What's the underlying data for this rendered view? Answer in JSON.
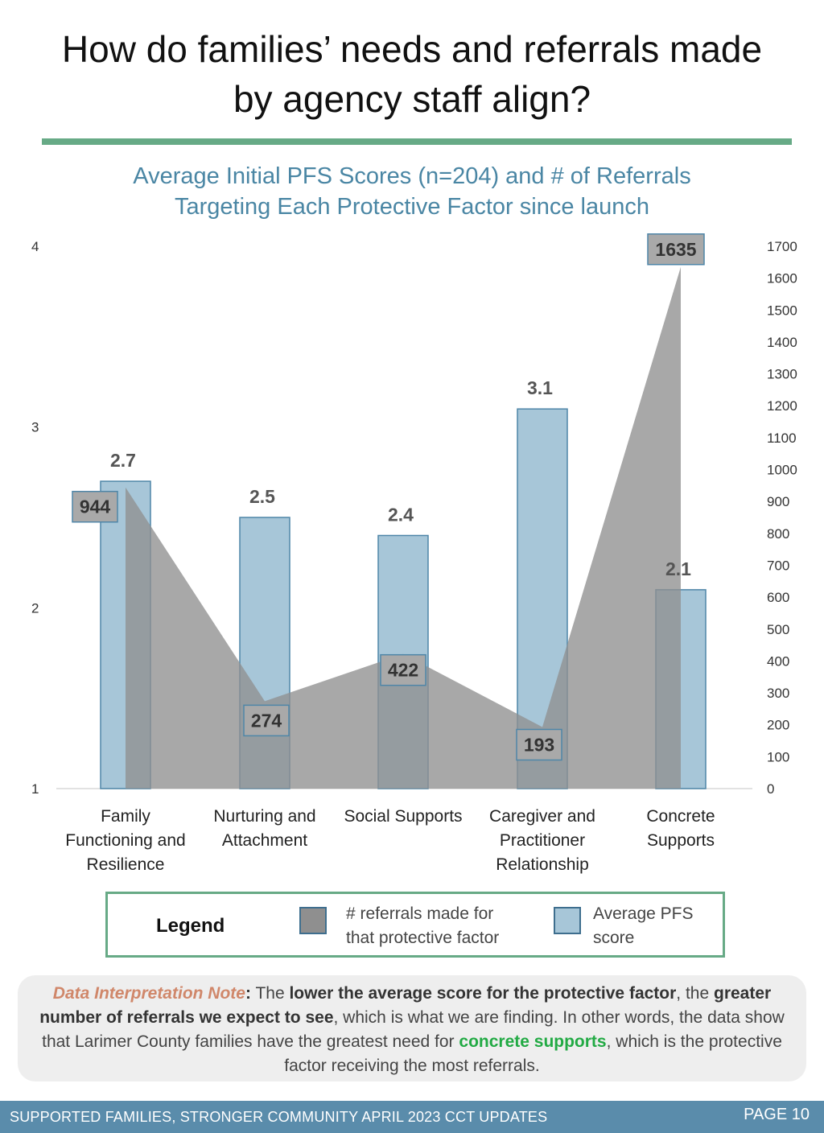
{
  "page": {
    "title_line1": "How do families’ needs and referrals made",
    "title_line2": "by agency staff align?"
  },
  "colors": {
    "rule": "#67aa86",
    "bar_fill": "#a7c6d8",
    "bar_stroke": "#4f86a8",
    "area_fill": "#8f8f8f",
    "label_box": "#a9a9a9",
    "title_blue": "#4a86a4"
  },
  "chart_data": {
    "type": "bar",
    "title_line1": "Average Initial PFS Scores (n=204) and # of Referrals",
    "title_line2": "Targeting Each Protective Factor since launch",
    "categories": [
      [
        "Family",
        "Functioning and",
        "Resilience"
      ],
      [
        "Nurturing and",
        "Attachment"
      ],
      [
        "Social Supports"
      ],
      [
        "Caregiver and",
        "Practitioner",
        "Relationship"
      ],
      [
        "Concrete",
        "Supports"
      ]
    ],
    "series": [
      {
        "name": "Average PFS score",
        "type": "bar",
        "axis": "left",
        "values": [
          2.7,
          2.5,
          2.4,
          3.1,
          2.1
        ],
        "labels": [
          "2.7",
          "2.5",
          "2.4",
          "3.1",
          "2.1"
        ]
      },
      {
        "name": "# referrals made for that protective factor",
        "type": "area",
        "axis": "right",
        "values": [
          944,
          274,
          422,
          193,
          1635
        ],
        "labels": [
          "944",
          "274",
          "422",
          "193",
          "1635"
        ]
      }
    ],
    "y_left": {
      "min": 1,
      "max": 4,
      "ticks": [
        "1",
        "2",
        "3",
        "4"
      ]
    },
    "y_right": {
      "min": 0,
      "max": 1700,
      "ticks": [
        "0",
        "100",
        "200",
        "300",
        "400",
        "500",
        "600",
        "700",
        "800",
        "900",
        "1000",
        "1100",
        "1200",
        "1300",
        "1400",
        "1500",
        "1600",
        "1700"
      ]
    },
    "grid": false,
    "legend_position": "bottom"
  },
  "legend": {
    "title": "Legend",
    "referrals_line1": "# referrals made for",
    "referrals_line2": "that protective factor",
    "pfs_line1": "Average PFS",
    "pfs_line2": "score"
  },
  "note": {
    "lead": "Data Interpretation Note",
    "colon": ":",
    "t1": " The ",
    "b1": "lower the average score for the protective factor",
    "t2": ", the ",
    "b2": "greater number of referrals we expect to see",
    "t3": ", which is what we are finding. In other words, the data show that Larimer County families have the greatest need for ",
    "g1": "concrete supports",
    "t4": ", which is the protective factor receiving the most referrals."
  },
  "footer": {
    "left": "SUPPORTED FAMILIES, STRONGER COMMUNITY APRIL 2023 CCT UPDATES",
    "page": "PAGE 10"
  }
}
